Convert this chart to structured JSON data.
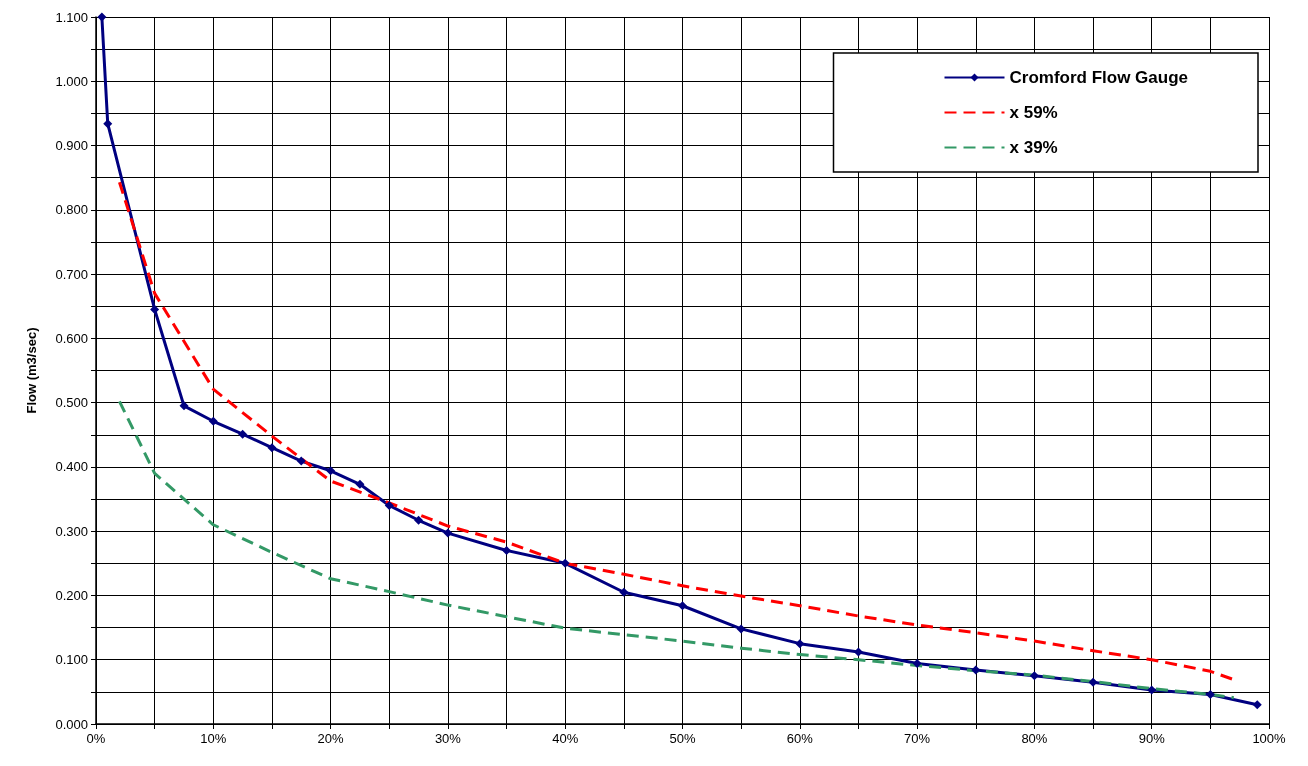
{
  "chart_data": {
    "type": "line",
    "ylabel": "Flow (m3/sec)",
    "xlim": [
      0,
      100
    ],
    "xticks": [
      {
        "value": 0,
        "label": "0%"
      },
      {
        "value": 5,
        "label": null
      },
      {
        "value": 10,
        "label": "10%"
      },
      {
        "value": 15,
        "label": null
      },
      {
        "value": 20,
        "label": "20%"
      },
      {
        "value": 25,
        "label": null
      },
      {
        "value": 30,
        "label": "30%"
      },
      {
        "value": 35,
        "label": null
      },
      {
        "value": 40,
        "label": "40%"
      },
      {
        "value": 45,
        "label": null
      },
      {
        "value": 50,
        "label": "50%"
      },
      {
        "value": 55,
        "label": null
      },
      {
        "value": 60,
        "label": "60%"
      },
      {
        "value": 65,
        "label": null
      },
      {
        "value": 70,
        "label": "70%"
      },
      {
        "value": 75,
        "label": null
      },
      {
        "value": 80,
        "label": "80%"
      },
      {
        "value": 85,
        "label": null
      },
      {
        "value": 90,
        "label": "90%"
      },
      {
        "value": 95,
        "label": null
      },
      {
        "value": 100,
        "label": "100%"
      }
    ],
    "ylim": [
      0,
      1.1
    ],
    "yticks": [
      {
        "value": 0,
        "label": "0.000"
      },
      {
        "value": 0.05,
        "label": null
      },
      {
        "value": 0.1,
        "label": "0.100"
      },
      {
        "value": 0.15,
        "label": null
      },
      {
        "value": 0.2,
        "label": "0.200"
      },
      {
        "value": 0.25,
        "label": null
      },
      {
        "value": 0.3,
        "label": "0.300"
      },
      {
        "value": 0.35,
        "label": null
      },
      {
        "value": 0.4,
        "label": "0.400"
      },
      {
        "value": 0.45,
        "label": null
      },
      {
        "value": 0.5,
        "label": "0.500"
      },
      {
        "value": 0.55,
        "label": null
      },
      {
        "value": 0.6,
        "label": "0.600"
      },
      {
        "value": 0.65,
        "label": null
      },
      {
        "value": 0.7,
        "label": "0.700"
      },
      {
        "value": 0.75,
        "label": null
      },
      {
        "value": 0.8,
        "label": "0.800"
      },
      {
        "value": 0.85,
        "label": null
      },
      {
        "value": 0.9,
        "label": "0.900"
      },
      {
        "value": 0.95,
        "label": null
      },
      {
        "value": 1.0,
        "label": "1.000"
      },
      {
        "value": 1.05,
        "label": null
      },
      {
        "value": 1.1,
        "label": "1.100"
      }
    ],
    "grid": true,
    "legend": "top right",
    "series": [
      {
        "name": "Cromford Flow Gauge",
        "color": "#000080",
        "marker": "diamond",
        "line_style": "solid",
        "x": [
          0.5,
          1,
          5,
          7.5,
          10,
          12.5,
          15,
          17.5,
          20,
          22.5,
          25,
          27.5,
          30,
          35,
          40,
          45,
          50,
          55,
          60,
          65,
          70,
          75,
          80,
          85,
          90,
          95,
          99
        ],
        "values": [
          1.1,
          0.934,
          0.645,
          0.495,
          0.471,
          0.451,
          0.43,
          0.409,
          0.394,
          0.373,
          0.34,
          0.317,
          0.297,
          0.27,
          0.25,
          0.205,
          0.184,
          0.148,
          0.125,
          0.112,
          0.094,
          0.084,
          0.075,
          0.065,
          0.053,
          0.046,
          0.03
        ]
      },
      {
        "name": "x 59%",
        "color": "#ff0000",
        "marker": "none",
        "line_style": "dashed",
        "x": [
          2,
          5,
          10,
          15,
          20,
          25,
          30,
          35,
          40,
          45,
          50,
          55,
          60,
          65,
          70,
          75,
          80,
          85,
          90,
          95,
          97
        ],
        "values": [
          0.843,
          0.67,
          0.521,
          0.448,
          0.378,
          0.344,
          0.308,
          0.283,
          0.25,
          0.233,
          0.215,
          0.199,
          0.184,
          0.168,
          0.154,
          0.142,
          0.129,
          0.114,
          0.1,
          0.082,
          0.069
        ]
      },
      {
        "name": "x 39%",
        "color": "#339966",
        "marker": "none",
        "line_style": "dashed",
        "x": [
          2,
          5,
          10,
          15,
          20,
          25,
          30,
          35,
          40,
          45,
          50,
          55,
          60,
          65,
          70,
          75,
          80,
          85,
          90,
          95,
          97
        ],
        "values": [
          0.502,
          0.39,
          0.31,
          0.267,
          0.226,
          0.206,
          0.185,
          0.167,
          0.149,
          0.139,
          0.129,
          0.118,
          0.108,
          0.1,
          0.091,
          0.083,
          0.076,
          0.066,
          0.055,
          0.046,
          0.041
        ]
      }
    ]
  }
}
